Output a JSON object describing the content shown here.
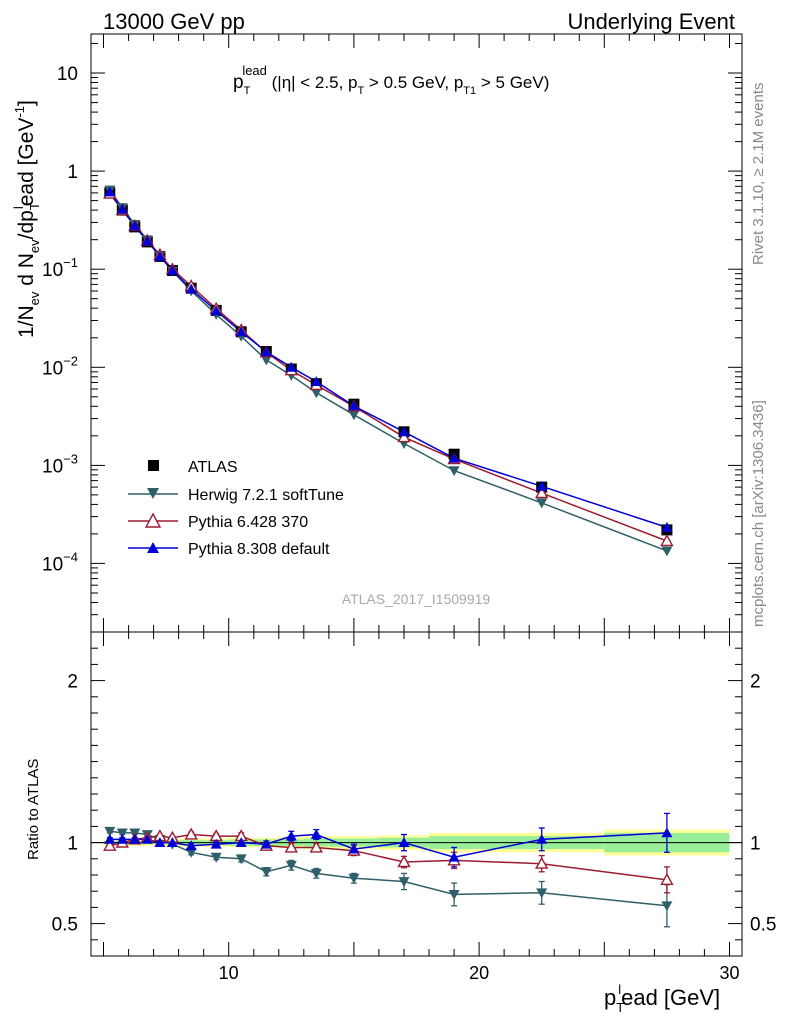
{
  "header": {
    "left": "13000 GeV pp",
    "right": "Underlying Event",
    "side_top": "Rivet 3.1.10, ≥ 2.1M events",
    "side_bottom": "mcplots.cern.ch [arXiv:1306.3436]",
    "analysis": "ATLAS_2017_I1509919",
    "selection": {
      "p": "p",
      "T": "T",
      "lead": "lead",
      "cut1": " (|η| < 2.5, p",
      "cut2": " > 0.5 GeV, p",
      "T1": "T1",
      "cut3": " > 5 GeV)"
    }
  },
  "chart_data": {
    "type": "line",
    "x_range": [
      4.5,
      30.5
    ],
    "x_ticks": [
      "10",
      "20",
      "30"
    ],
    "xlabel": {
      "main": "p",
      "sub": "T",
      "sup": "l",
      "rest": "ead [GeV]"
    },
    "main_panel": {
      "scale": "log",
      "y_range": [
        2e-05,
        25
      ],
      "ytick_labels": [
        {
          "base": "10",
          "exp": "−4"
        },
        {
          "base": "10",
          "exp": "−3"
        },
        {
          "base": "10",
          "exp": "−2"
        },
        {
          "base": "10",
          "exp": "−1"
        },
        {
          "base": "1",
          "exp": ""
        },
        {
          "base": "10",
          "exp": ""
        }
      ],
      "ylabel": {
        "t1": "1/N",
        "s1": "ev",
        "t2": " d N",
        "s2": "ev",
        "t3": "/dp",
        "s3": "T",
        "sup3": "l",
        "t4": "ead [GeV",
        "sup4": "-1",
        "t5": "]"
      }
    },
    "ratio_panel": {
      "ylabel": "Ratio to ATLAS",
      "y_range": [
        0.3,
        2.3
      ],
      "ytick_labels": [
        "0.5",
        "1",
        "2"
      ]
    },
    "legend": {
      "placement": "lower-left",
      "entries": [
        "ATLAS",
        "Herwig 7.2.1 softTune",
        "Pythia 6.428 370",
        "Pythia 8.308 default"
      ]
    },
    "series": [
      {
        "name": "ATLAS",
        "color": "#000000",
        "marker": "square",
        "x": [
          5.25,
          5.75,
          6.25,
          6.75,
          7.25,
          7.75,
          8.5,
          9.5,
          10.5,
          11.5,
          12.5,
          13.5,
          15,
          17,
          19,
          22.5,
          27.5
        ],
        "y": [
          0.6,
          0.4,
          0.27,
          0.19,
          0.135,
          0.097,
          0.064,
          0.038,
          0.023,
          0.0145,
          0.0096,
          0.0068,
          0.0042,
          0.0022,
          0.0013,
          0.0006,
          0.00022
        ],
        "band_x": [
          5,
          5.5,
          6,
          6.5,
          7,
          7.5,
          8,
          9,
          10,
          11,
          12,
          13,
          14,
          16,
          18,
          20,
          25,
          30
        ],
        "band_stat": [
          0.01,
          0.01,
          0.01,
          0.01,
          0.01,
          0.01,
          0.015,
          0.015,
          0.02,
          0.02,
          0.02,
          0.025,
          0.025,
          0.03,
          0.04,
          0.04,
          0.06
        ],
        "band_tot": [
          0.02,
          0.02,
          0.02,
          0.02,
          0.02,
          0.02,
          0.025,
          0.025,
          0.03,
          0.03,
          0.035,
          0.04,
          0.04,
          0.045,
          0.06,
          0.06,
          0.08
        ]
      },
      {
        "name": "Herwig 7.2.1 softTune",
        "color": "#2f5f68",
        "marker": "triangle-down",
        "x": [
          5.25,
          5.75,
          6.25,
          6.75,
          7.25,
          7.75,
          8.5,
          9.5,
          10.5,
          11.5,
          12.5,
          13.5,
          15,
          17,
          19,
          22.5,
          27.5
        ],
        "ratio": [
          1.07,
          1.06,
          1.06,
          1.05,
          1.02,
          0.99,
          0.94,
          0.91,
          0.9,
          0.82,
          0.86,
          0.81,
          0.78,
          0.76,
          0.68,
          0.69,
          0.61
        ],
        "ratio_err": [
          0.01,
          0.01,
          0.01,
          0.01,
          0.01,
          0.01,
          0.015,
          0.015,
          0.02,
          0.025,
          0.03,
          0.03,
          0.03,
          0.05,
          0.07,
          0.07,
          0.13
        ]
      },
      {
        "name": "Pythia 6.428 370",
        "color": "#9b1b30",
        "marker": "triangle-up-open",
        "x": [
          5.25,
          5.75,
          6.25,
          6.75,
          7.25,
          7.75,
          8.5,
          9.5,
          10.5,
          11.5,
          12.5,
          13.5,
          15,
          17,
          19,
          22.5,
          27.5
        ],
        "ratio": [
          0.98,
          1.0,
          1.02,
          1.03,
          1.04,
          1.03,
          1.05,
          1.04,
          1.04,
          0.98,
          0.97,
          0.97,
          0.95,
          0.88,
          0.89,
          0.87,
          0.77
        ],
        "ratio_err": [
          0.01,
          0.01,
          0.01,
          0.01,
          0.01,
          0.01,
          0.015,
          0.015,
          0.02,
          0.02,
          0.025,
          0.025,
          0.03,
          0.035,
          0.05,
          0.05,
          0.08
        ]
      },
      {
        "name": "Pythia 8.308 default",
        "color": "#0000d6",
        "marker": "triangle-up",
        "x": [
          5.25,
          5.75,
          6.25,
          6.75,
          7.25,
          7.75,
          8.5,
          9.5,
          10.5,
          11.5,
          12.5,
          13.5,
          15,
          17,
          19,
          22.5,
          27.5
        ],
        "ratio": [
          1.02,
          1.02,
          1.02,
          1.02,
          1.0,
          1.0,
          0.98,
          0.99,
          1.0,
          0.99,
          1.04,
          1.05,
          0.96,
          1.0,
          0.91,
          1.02,
          1.06
        ],
        "ratio_err": [
          0.01,
          0.01,
          0.01,
          0.01,
          0.01,
          0.01,
          0.015,
          0.015,
          0.02,
          0.02,
          0.03,
          0.03,
          0.03,
          0.05,
          0.06,
          0.07,
          0.12
        ]
      }
    ]
  }
}
